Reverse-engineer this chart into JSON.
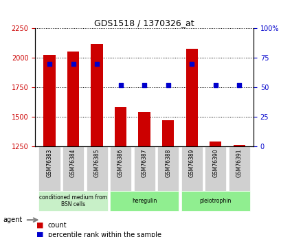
{
  "title": "GDS1518 / 1370326_at",
  "samples": [
    "GSM76383",
    "GSM76384",
    "GSM76385",
    "GSM76386",
    "GSM76387",
    "GSM76388",
    "GSM76389",
    "GSM76390",
    "GSM76391"
  ],
  "counts": [
    2025,
    2055,
    2120,
    1580,
    1540,
    1470,
    2075,
    1290,
    1265
  ],
  "percentile_ranks": [
    70,
    70,
    70,
    52,
    52,
    52,
    70,
    52,
    52
  ],
  "baseline": 1250,
  "ylim_left": [
    1250,
    2250
  ],
  "ylim_right": [
    0,
    100
  ],
  "yticks_left": [
    1250,
    1500,
    1750,
    2000,
    2250
  ],
  "yticks_right": [
    0,
    25,
    50,
    75,
    100
  ],
  "groups": [
    {
      "label": "conditioned medium from\nBSN cells",
      "start": 0,
      "end": 3,
      "color": "#c8f0c8"
    },
    {
      "label": "heregulin",
      "start": 3,
      "end": 6,
      "color": "#90ee90"
    },
    {
      "label": "pleiotrophin",
      "start": 6,
      "end": 9,
      "color": "#90ee90"
    }
  ],
  "bar_color": "#cc0000",
  "dot_color": "#0000cc",
  "bar_width": 0.5,
  "grid_color": "#000000",
  "background_color": "#ffffff",
  "plot_bg_color": "#ffffff",
  "tick_label_color_left": "#cc0000",
  "tick_label_color_right": "#0000cc",
  "legend_count_color": "#cc0000",
  "legend_dot_color": "#0000cc"
}
